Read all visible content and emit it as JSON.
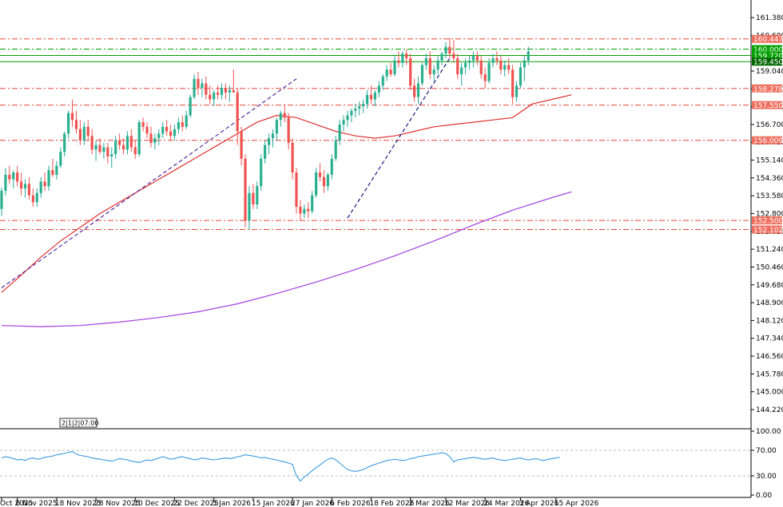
{
  "chart_data": [
    {
      "type": "candlestick",
      "instrument_note": "",
      "ylim": [
        143.45,
        162.15
      ],
      "price_ticks": [
        "161.380",
        "160.600",
        "159.040",
        "158.260",
        "157.480",
        "156.700",
        "155.920",
        "155.140",
        "154.360",
        "153.580",
        "152.800",
        "152.020",
        "151.240",
        "150.460",
        "149.680",
        "148.900",
        "148.120",
        "147.340",
        "146.560",
        "145.780",
        "145.000",
        "144.220"
      ],
      "date_labels": [
        "Oct 2025",
        "6 Nov 2025",
        "18 Nov 2025",
        "28 Nov 2025",
        "10 Dec 2025",
        "22 Dec 2025",
        "5 Jan 2026",
        "15 Jan 2026",
        "27 Jan 2026",
        "6 Feb 2026",
        "18 Feb 2026",
        "2 Mar 2026",
        "12 Mar 2026",
        "24 Mar 2026",
        "3 Apr 2026",
        "15 Apr 2026"
      ],
      "date_index": [
        0,
        4,
        14,
        24,
        34,
        44,
        54,
        64,
        74,
        84,
        94,
        104,
        113,
        123,
        132,
        141
      ],
      "crosshair_label": "2|1|2|07:00",
      "levels": [
        {
          "value": "160.447",
          "price": 160.447,
          "color": "#e8473a",
          "style": "dash-dot",
          "label_bg": "#ef6f5f"
        },
        {
          "value": "160.000",
          "price": 160.0,
          "color": "#00a000",
          "style": "dash-dot",
          "label_bg": "#00a000"
        },
        {
          "value": "159.720",
          "price": 159.72,
          "color": "#00a000",
          "style": "solid",
          "label_bg": "#00a000"
        },
        {
          "value": "159.450",
          "price": 159.45,
          "color": "#00a000",
          "style": "solid",
          "label_bg": "#006600"
        },
        {
          "value": "158.278",
          "price": 158.278,
          "color": "#e8473a",
          "style": "dash-dot",
          "label_bg": "#ef6f5f"
        },
        {
          "value": "157.550",
          "price": 157.55,
          "color": "#e8473a",
          "style": "dash-dot",
          "label_bg": "#ef6f5f"
        },
        {
          "value": "156.009",
          "price": 156.009,
          "color": "#e8473a",
          "style": "dash-dot",
          "label_bg": "#ef6f5f"
        },
        {
          "value": "152.500",
          "price": 152.5,
          "color": "#e8473a",
          "style": "dash-dot",
          "label_bg": "#ef6f5f"
        },
        {
          "value": "152.102",
          "price": 152.102,
          "color": "#e8473a",
          "style": "dash-dot",
          "label_bg": "#ef6f5f"
        }
      ],
      "candles": [
        [
          153.0,
          153.95,
          152.7,
          153.8
        ],
        [
          153.8,
          154.8,
          153.6,
          154.5
        ],
        [
          154.5,
          154.9,
          154.1,
          154.3
        ],
        [
          154.3,
          154.7,
          153.9,
          154.6
        ],
        [
          154.6,
          154.9,
          154.0,
          154.2
        ],
        [
          154.2,
          154.6,
          153.6,
          153.9
        ],
        [
          153.9,
          154.3,
          153.5,
          154.1
        ],
        [
          154.1,
          154.4,
          153.4,
          153.6
        ],
        [
          153.6,
          153.9,
          153.1,
          153.3
        ],
        [
          153.3,
          153.9,
          153.1,
          153.7
        ],
        [
          153.7,
          154.4,
          153.5,
          154.2
        ],
        [
          154.2,
          154.6,
          153.8,
          154.0
        ],
        [
          154.0,
          154.9,
          153.8,
          154.7
        ],
        [
          154.7,
          155.2,
          154.4,
          154.5
        ],
        [
          154.5,
          155.1,
          154.3,
          154.9
        ],
        [
          154.9,
          155.7,
          154.8,
          155.5
        ],
        [
          155.5,
          156.4,
          155.3,
          156.3
        ],
        [
          156.3,
          157.3,
          156.1,
          157.2
        ],
        [
          157.2,
          157.8,
          156.6,
          156.9
        ],
        [
          156.9,
          157.3,
          156.3,
          156.5
        ],
        [
          156.5,
          156.9,
          155.8,
          156.0
        ],
        [
          156.0,
          156.8,
          155.8,
          156.6
        ],
        [
          156.6,
          156.9,
          156.0,
          156.2
        ],
        [
          156.2,
          156.5,
          155.4,
          155.6
        ],
        [
          155.6,
          156.0,
          155.1,
          155.8
        ],
        [
          155.8,
          156.1,
          155.4,
          155.5
        ],
        [
          155.5,
          155.9,
          155.2,
          155.7
        ],
        [
          155.7,
          155.9,
          155.0,
          155.3
        ],
        [
          155.3,
          155.7,
          154.8,
          155.4
        ],
        [
          155.4,
          156.2,
          155.2,
          156.0
        ],
        [
          156.0,
          156.3,
          155.6,
          155.8
        ],
        [
          155.8,
          156.1,
          155.4,
          155.6
        ],
        [
          155.6,
          156.4,
          155.4,
          156.2
        ],
        [
          156.2,
          156.5,
          155.5,
          155.7
        ],
        [
          155.7,
          156.0,
          155.2,
          155.4
        ],
        [
          155.4,
          156.9,
          155.3,
          156.8
        ],
        [
          156.8,
          157.0,
          156.4,
          156.6
        ],
        [
          156.6,
          156.8,
          156.1,
          156.3
        ],
        [
          156.3,
          156.6,
          155.7,
          155.9
        ],
        [
          155.9,
          156.3,
          155.6,
          156.1
        ],
        [
          156.1,
          156.5,
          155.8,
          156.3
        ],
        [
          156.3,
          156.8,
          156.1,
          156.6
        ],
        [
          156.6,
          156.9,
          156.2,
          156.4
        ],
        [
          156.4,
          156.7,
          156.0,
          156.2
        ],
        [
          156.2,
          156.7,
          156.0,
          156.5
        ],
        [
          156.5,
          157.0,
          156.3,
          156.8
        ],
        [
          156.8,
          157.1,
          156.4,
          156.6
        ],
        [
          156.6,
          157.3,
          156.5,
          157.1
        ],
        [
          157.1,
          158.0,
          157.0,
          157.9
        ],
        [
          157.9,
          158.9,
          157.8,
          158.7
        ],
        [
          158.7,
          159.0,
          158.0,
          158.3
        ],
        [
          158.3,
          158.7,
          157.9,
          158.5
        ],
        [
          158.5,
          158.8,
          157.8,
          158.0
        ],
        [
          158.0,
          158.4,
          157.6,
          157.8
        ],
        [
          157.8,
          158.2,
          157.5,
          158.1
        ],
        [
          158.1,
          158.4,
          157.8,
          158.0
        ],
        [
          158.0,
          158.5,
          157.8,
          158.3
        ],
        [
          158.3,
          158.5,
          157.8,
          158.1
        ],
        [
          158.1,
          158.4,
          157.7,
          158.2
        ],
        [
          158.2,
          159.1,
          158.1,
          158.1
        ],
        [
          158.1,
          158.3,
          155.8,
          156.4
        ],
        [
          156.4,
          156.6,
          154.9,
          155.2
        ],
        [
          155.2,
          155.4,
          152.2,
          152.5
        ],
        [
          152.5,
          154.0,
          152.1,
          153.7
        ],
        [
          153.7,
          154.1,
          153.0,
          153.2
        ],
        [
          153.2,
          154.2,
          153.0,
          154.0
        ],
        [
          154.0,
          155.4,
          153.8,
          155.2
        ],
        [
          155.2,
          156.0,
          155.0,
          155.8
        ],
        [
          155.8,
          156.3,
          155.4,
          156.1
        ],
        [
          156.1,
          156.5,
          155.7,
          156.3
        ],
        [
          156.3,
          157.0,
          156.0,
          156.9
        ],
        [
          156.9,
          157.3,
          156.6,
          157.2
        ],
        [
          157.2,
          157.6,
          156.8,
          157.0
        ],
        [
          157.0,
          157.2,
          155.6,
          155.9
        ],
        [
          155.9,
          156.1,
          154.3,
          154.6
        ],
        [
          154.6,
          154.8,
          152.8,
          153.1
        ],
        [
          153.1,
          153.4,
          152.5,
          152.8
        ],
        [
          152.8,
          153.2,
          152.6,
          153.0
        ],
        [
          153.0,
          153.3,
          152.6,
          152.9
        ],
        [
          152.9,
          153.8,
          152.8,
          153.6
        ],
        [
          153.6,
          154.8,
          153.5,
          154.6
        ],
        [
          154.6,
          155.0,
          154.2,
          154.4
        ],
        [
          154.4,
          154.7,
          153.7,
          154.0
        ],
        [
          154.0,
          154.6,
          153.8,
          154.5
        ],
        [
          154.5,
          155.4,
          154.3,
          155.2
        ],
        [
          155.2,
          156.2,
          155.1,
          156.0
        ],
        [
          156.0,
          156.9,
          155.8,
          156.7
        ],
        [
          156.7,
          157.1,
          156.4,
          156.9
        ],
        [
          156.9,
          157.3,
          156.6,
          157.1
        ],
        [
          157.1,
          157.4,
          156.8,
          157.3
        ],
        [
          157.3,
          157.6,
          157.0,
          157.4
        ],
        [
          157.4,
          157.7,
          157.1,
          157.5
        ],
        [
          157.5,
          157.8,
          157.2,
          157.6
        ],
        [
          157.6,
          158.2,
          157.4,
          158.0
        ],
        [
          158.0,
          158.4,
          157.6,
          157.8
        ],
        [
          157.8,
          158.2,
          157.5,
          158.1
        ],
        [
          158.1,
          158.6,
          157.9,
          158.4
        ],
        [
          158.4,
          158.9,
          158.2,
          158.8
        ],
        [
          158.8,
          159.3,
          158.6,
          159.1
        ],
        [
          159.1,
          159.4,
          158.8,
          158.9
        ],
        [
          158.9,
          159.7,
          158.8,
          159.5
        ],
        [
          159.5,
          159.9,
          159.2,
          159.4
        ],
        [
          159.4,
          159.9,
          159.2,
          159.8
        ],
        [
          159.8,
          160.0,
          159.3,
          159.6
        ],
        [
          159.6,
          159.8,
          158.2,
          158.4
        ],
        [
          158.4,
          158.7,
          157.7,
          157.9
        ],
        [
          157.9,
          158.8,
          157.6,
          158.5
        ],
        [
          158.5,
          159.4,
          158.4,
          159.3
        ],
        [
          159.3,
          159.8,
          159.1,
          159.6
        ],
        [
          159.6,
          159.9,
          158.7,
          158.9
        ],
        [
          158.9,
          159.3,
          158.6,
          159.1
        ],
        [
          159.1,
          159.7,
          158.9,
          159.5
        ],
        [
          159.5,
          159.9,
          159.3,
          159.8
        ],
        [
          159.8,
          160.3,
          159.6,
          160.1
        ],
        [
          160.1,
          160.5,
          159.6,
          159.8
        ],
        [
          159.8,
          160.4,
          159.4,
          159.6
        ],
        [
          159.6,
          159.8,
          158.7,
          158.9
        ],
        [
          158.9,
          159.4,
          158.4,
          159.2
        ],
        [
          159.2,
          159.6,
          158.9,
          159.4
        ],
        [
          159.4,
          159.7,
          159.1,
          159.5
        ],
        [
          159.5,
          159.9,
          159.2,
          159.7
        ],
        [
          159.7,
          159.9,
          159.3,
          159.5
        ],
        [
          159.5,
          159.7,
          158.7,
          158.9
        ],
        [
          158.9,
          159.2,
          158.3,
          158.6
        ],
        [
          158.6,
          159.6,
          158.5,
          159.4
        ],
        [
          159.4,
          159.8,
          159.2,
          159.6
        ],
        [
          159.6,
          159.9,
          159.3,
          159.5
        ],
        [
          159.5,
          159.7,
          158.9,
          159.1
        ],
        [
          159.1,
          159.5,
          158.8,
          159.3
        ],
        [
          159.3,
          159.6,
          158.9,
          159.1
        ],
        [
          159.1,
          159.3,
          157.6,
          157.9
        ],
        [
          157.9,
          158.6,
          157.7,
          158.4
        ],
        [
          158.4,
          159.4,
          158.3,
          159.2
        ],
        [
          159.2,
          159.7,
          158.6,
          159.5
        ],
        [
          159.5,
          160.1,
          159.3,
          159.9
        ]
      ],
      "ema_red": [
        [
          0,
          149.35
        ],
        [
          5,
          150.1
        ],
        [
          10,
          150.9
        ],
        [
          15,
          151.6
        ],
        [
          20,
          152.2
        ],
        [
          25,
          152.8
        ],
        [
          30,
          153.3
        ],
        [
          35,
          153.8
        ],
        [
          40,
          154.3
        ],
        [
          45,
          154.8
        ],
        [
          50,
          155.3
        ],
        [
          55,
          155.8
        ],
        [
          60,
          156.3
        ],
        [
          65,
          156.8
        ],
        [
          70,
          157.1
        ],
        [
          75,
          157.0
        ],
        [
          80,
          156.7
        ],
        [
          85,
          156.4
        ],
        [
          90,
          156.2
        ],
        [
          95,
          156.1
        ],
        [
          100,
          156.2
        ],
        [
          105,
          156.4
        ],
        [
          110,
          156.6
        ],
        [
          115,
          156.7
        ],
        [
          120,
          156.8
        ],
        [
          125,
          156.9
        ],
        [
          130,
          157.0
        ],
        [
          135,
          157.6
        ],
        [
          140,
          157.8
        ],
        [
          145,
          158.0
        ]
      ],
      "ema_purple": [
        [
          0,
          147.9
        ],
        [
          10,
          147.85
        ],
        [
          20,
          147.9
        ],
        [
          30,
          148.05
        ],
        [
          40,
          148.25
        ],
        [
          50,
          148.5
        ],
        [
          60,
          148.85
        ],
        [
          70,
          149.3
        ],
        [
          80,
          149.8
        ],
        [
          90,
          150.35
        ],
        [
          100,
          150.95
        ],
        [
          110,
          151.6
        ],
        [
          120,
          152.3
        ],
        [
          130,
          152.95
        ],
        [
          140,
          153.5
        ],
        [
          145,
          153.75
        ]
      ],
      "trendlines": [
        {
          "from": [
            0,
            149.55
          ],
          "to": [
            75,
            158.7
          ],
          "color": "#5a2aa0"
        },
        {
          "from": [
            88,
            152.6
          ],
          "to": [
            114,
            159.6
          ],
          "color": "#1a1a80"
        }
      ]
    },
    {
      "type": "line",
      "indicator": "",
      "ylim": [
        0,
        100
      ],
      "ticks": [
        "100.00",
        "70.00",
        "30.00",
        "0.00"
      ],
      "levels": [
        70,
        30
      ],
      "values": [
        58,
        60,
        59,
        57,
        55,
        56,
        54,
        57,
        58,
        56,
        57,
        59,
        60,
        61,
        63,
        64,
        65,
        67,
        68,
        64,
        62,
        61,
        60,
        58,
        57,
        56,
        55,
        54,
        53,
        55,
        57,
        56,
        55,
        53,
        52,
        51,
        53,
        55,
        54,
        56,
        58,
        60,
        58,
        56,
        57,
        59,
        60,
        58,
        57,
        55,
        56,
        58,
        57,
        56,
        55,
        56,
        57,
        58,
        57,
        58,
        60,
        61,
        63,
        62,
        61,
        60,
        58,
        59,
        57,
        56,
        55,
        53,
        52,
        50,
        48,
        30,
        22,
        28,
        33,
        38,
        43,
        47,
        52,
        56,
        58,
        55,
        50,
        45,
        40,
        38,
        37,
        38,
        40,
        43,
        46,
        48,
        50,
        52,
        54,
        55,
        56,
        55,
        54,
        55,
        57,
        58,
        60,
        61,
        62,
        63,
        64,
        65,
        66,
        65,
        60,
        52,
        55,
        56,
        57,
        58,
        59,
        58,
        57,
        56,
        57,
        58,
        56,
        55,
        54,
        55,
        56,
        57,
        58,
        56,
        55,
        56,
        57,
        55,
        54,
        56,
        57,
        58,
        59
      ]
    }
  ]
}
